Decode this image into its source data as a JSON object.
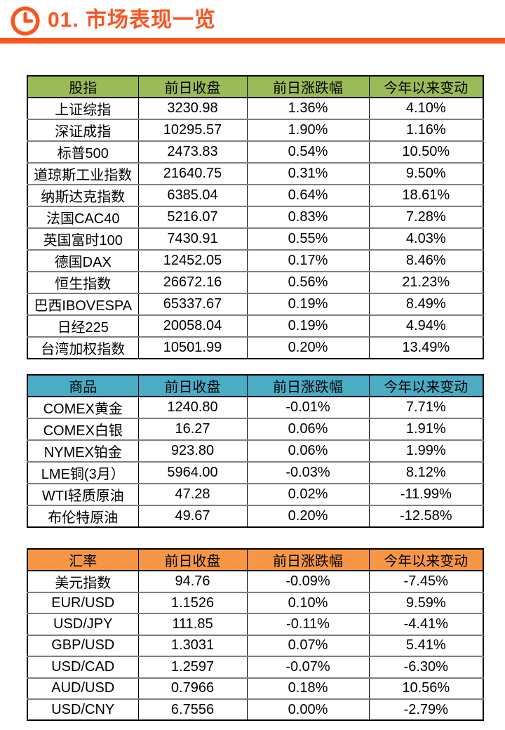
{
  "page": {
    "title": "01. 市场表现一览",
    "accent_color": "#FA551E"
  },
  "tables": [
    {
      "id": "stock-indices",
      "header_color": "#9BBB59",
      "columns": [
        "股指",
        "前日收盘",
        "前日涨跌幅",
        "今年以来变动"
      ],
      "rows": [
        [
          "上证综指",
          "3230.98",
          "1.36%",
          "4.10%"
        ],
        [
          "深证成指",
          "10295.57",
          "1.90%",
          "1.16%"
        ],
        [
          "标普500",
          "2473.83",
          "0.54%",
          "10.50%"
        ],
        [
          "道琼斯工业指数",
          "21640.75",
          "0.31%",
          "9.50%"
        ],
        [
          "纳斯达克指数",
          "6385.04",
          "0.64%",
          "18.61%"
        ],
        [
          "法国CAC40",
          "5216.07",
          "0.83%",
          "7.28%"
        ],
        [
          "英国富时100",
          "7430.91",
          "0.55%",
          "4.03%"
        ],
        [
          "德国DAX",
          "12452.05",
          "0.17%",
          "8.46%"
        ],
        [
          "恒生指数",
          "26672.16",
          "0.56%",
          "21.23%"
        ],
        [
          "巴西IBOVESPA",
          "65337.67",
          "0.19%",
          "8.49%"
        ],
        [
          "日经225",
          "20058.04",
          "0.19%",
          "4.94%"
        ],
        [
          "台湾加权指数",
          "10501.99",
          "0.20%",
          "13.49%"
        ]
      ]
    },
    {
      "id": "commodities",
      "header_color": "#4BACC6",
      "columns": [
        "商品",
        "前日收盘",
        "前日涨跌幅",
        "今年以来变动"
      ],
      "rows": [
        [
          "COMEX黄金",
          "1240.80",
          "-0.01%",
          "7.71%"
        ],
        [
          "COMEX白银",
          "16.27",
          "0.06%",
          "1.91%"
        ],
        [
          "NYMEX铂金",
          "923.80",
          "0.06%",
          "1.99%"
        ],
        [
          "LME铜(3月）",
          "5964.00",
          "-0.03%",
          "8.12%"
        ],
        [
          "WTI轻质原油",
          "47.28",
          "0.02%",
          "-11.99%"
        ],
        [
          "布伦特原油",
          "49.67",
          "0.20%",
          "-12.58%"
        ]
      ]
    },
    {
      "id": "exchange-rates",
      "header_color": "#F79646",
      "columns": [
        "汇率",
        "前日收盘",
        "前日涨跌幅",
        "今年以来变动"
      ],
      "rows": [
        [
          "美元指数",
          "94.76",
          "-0.09%",
          "-7.45%"
        ],
        [
          "EUR/USD",
          "1.1526",
          "0.10%",
          "9.59%"
        ],
        [
          "USD/JPY",
          "111.85",
          "-0.11%",
          "-4.41%"
        ],
        [
          "GBP/USD",
          "1.3031",
          "0.07%",
          "5.41%"
        ],
        [
          "USD/CAD",
          "1.2597",
          "-0.07%",
          "-6.30%"
        ],
        [
          "AUD/USD",
          "0.7966",
          "0.18%",
          "10.56%"
        ],
        [
          "USD/CNY",
          "6.7556",
          "0.00%",
          "-2.79%"
        ]
      ]
    }
  ]
}
